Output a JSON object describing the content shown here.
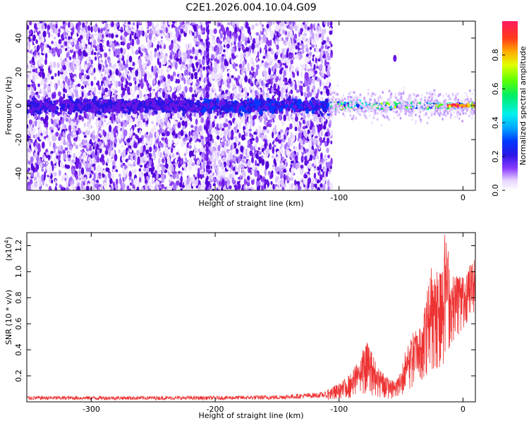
{
  "title": "C2E1.2026.004.10.04.G09",
  "chart_data": [
    {
      "type": "heatmap",
      "title": "C2E1.2026.004.10.04.G09",
      "xlabel": "Height of straight line (km)",
      "ylabel": "Frequency (Hz)",
      "xlim": [
        -352,
        10
      ],
      "ylim": [
        -50,
        50
      ],
      "xticks": [
        -300,
        -200,
        -100,
        0
      ],
      "xtick_labels": [
        "-300",
        "-200",
        "-100",
        "0"
      ],
      "yticks": [
        -40,
        -20,
        0,
        20,
        40
      ],
      "ytick_labels": [
        "-40",
        "-20",
        "0",
        "20",
        "40"
      ],
      "colorbar": {
        "label": "Normalized spectral amplitude",
        "range": [
          0.0,
          1.0
        ],
        "ticks": [
          0.0,
          0.2,
          0.4,
          0.6,
          0.8
        ],
        "tick_labels": [
          "0.0",
          "0.2",
          "0.4",
          "0.6",
          "0.8"
        ]
      },
      "features": {
        "noise_region_x": [
          -352,
          -108
        ],
        "signal_center_hz": 0,
        "signal_peak_amplitude": 0.95
      }
    },
    {
      "type": "line",
      "xlabel": "Height of straight line (km)",
      "ylabel": "SNR (10 * v/v)",
      "y_scale_label": "(x10",
      "y_scale_exponent": "4",
      "y_scale_close": ")",
      "xlim": [
        -352,
        10
      ],
      "ylim": [
        0,
        1.3
      ],
      "xticks": [
        -300,
        -200,
        -100,
        0
      ],
      "xtick_labels": [
        "-300",
        "-200",
        "-100",
        "0"
      ],
      "yticks": [
        0.2,
        0.4,
        0.6,
        0.8,
        1.0,
        1.2
      ],
      "ytick_labels": [
        "0.2",
        "0.4",
        "0.6",
        "0.8",
        "1.0",
        "1.2"
      ],
      "series": [
        {
          "name": "SNR",
          "color": "#ee3333",
          "envelope": {
            "x": [
              -352,
              -300,
              -200,
              -150,
              -110,
              -100,
              -90,
              -80,
              -77,
              -70,
              -60,
              -55,
              -50,
              -45,
              -40,
              -35,
              -30,
              -25,
              -20,
              -15,
              -13,
              -10,
              -5,
              0,
              5,
              10
            ],
            "min": [
              0.0,
              0.0,
              0.0,
              0.0,
              0.01,
              0.02,
              0.03,
              0.05,
              0.06,
              0.04,
              0.02,
              0.02,
              0.04,
              0.08,
              0.12,
              0.15,
              0.2,
              0.25,
              0.25,
              0.3,
              0.35,
              0.45,
              0.5,
              0.55,
              0.65,
              0.7
            ],
            "max": [
              0.06,
              0.06,
              0.06,
              0.07,
              0.1,
              0.14,
              0.22,
              0.42,
              0.47,
              0.3,
              0.18,
              0.16,
              0.25,
              0.45,
              0.55,
              0.6,
              0.8,
              1.08,
              1.05,
              1.3,
              1.3,
              0.95,
              1.0,
              0.98,
              1.05,
              1.1
            ]
          }
        }
      ]
    }
  ]
}
